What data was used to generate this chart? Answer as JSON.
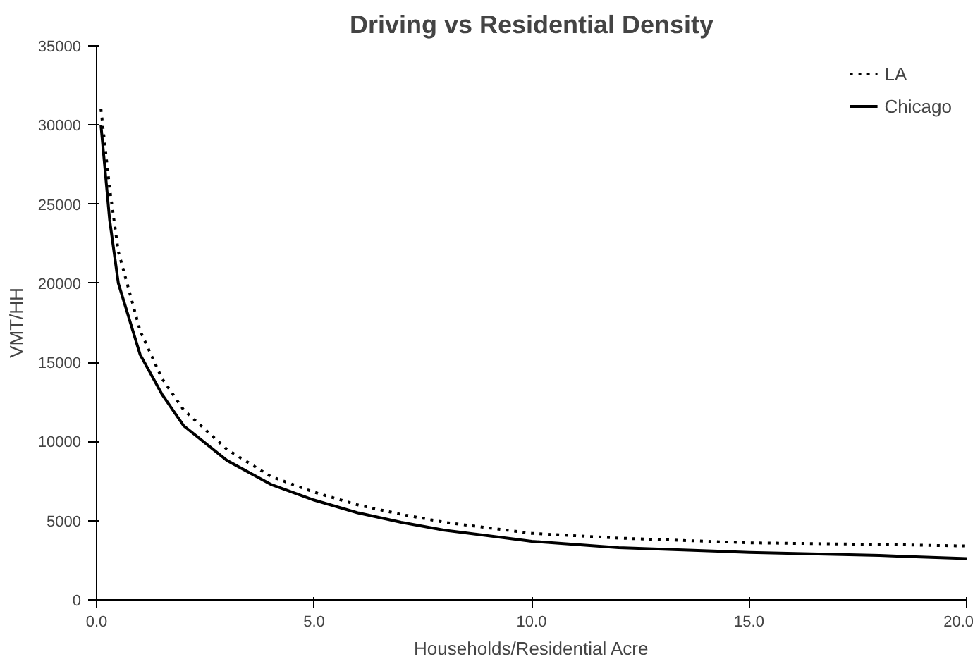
{
  "chart_data": {
    "type": "line",
    "title": "Driving vs Residential Density",
    "xlabel": "Households/Residential Acre",
    "ylabel": "VMT/HH",
    "x": [
      0.1,
      0.3,
      0.5,
      1,
      1.5,
      2,
      3,
      4,
      5,
      6,
      7,
      8,
      10,
      12,
      15,
      18,
      20
    ],
    "series": [
      {
        "name": "LA",
        "color": "#000000",
        "line_style": "dotted",
        "values": [
          31000,
          26000,
          22000,
          17000,
          14000,
          12000,
          9500,
          7800,
          6800,
          6000,
          5400,
          4900,
          4200,
          3900,
          3600,
          3500,
          3400
        ]
      },
      {
        "name": "Chicago",
        "color": "#000000",
        "line_style": "solid",
        "values": [
          30000,
          24000,
          20000,
          15500,
          13000,
          11000,
          8800,
          7300,
          6300,
          5500,
          4900,
          4400,
          3700,
          3300,
          3000,
          2800,
          2600
        ]
      }
    ],
    "xlim": [
      0,
      20
    ],
    "xticks": [
      {
        "value": 0,
        "label": "0.0"
      },
      {
        "value": 5,
        "label": "5.0"
      },
      {
        "value": 10,
        "label": "10.0"
      },
      {
        "value": 15,
        "label": "15.0"
      },
      {
        "value": 20,
        "label": "20.0"
      }
    ],
    "ylim": [
      0,
      35000
    ],
    "yticks": [
      0,
      5000,
      10000,
      15000,
      20000,
      25000,
      30000,
      35000
    ],
    "grid": false,
    "legend": "top right",
    "marker": "none"
  }
}
